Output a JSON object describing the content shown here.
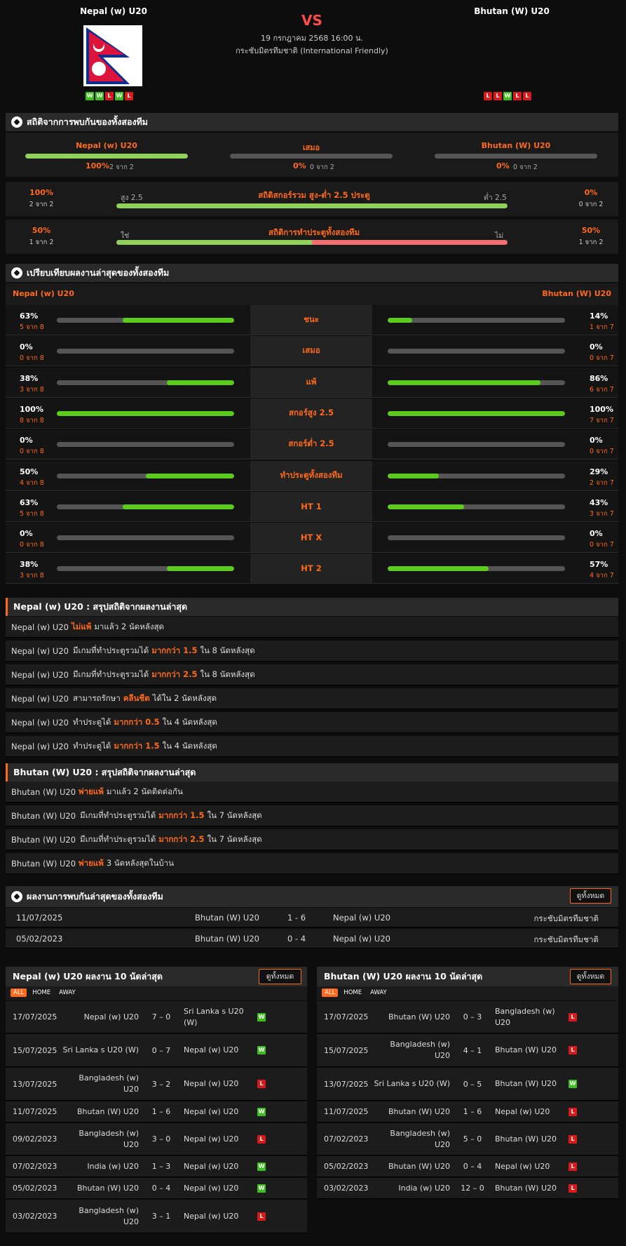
{
  "header": {
    "home_team": "Nepal (w) U20",
    "away_team": "Bhutan (W) U20",
    "vs": "VS",
    "datetime": "19 กรกฎาคม 2568 16:00 น.",
    "competition": "กระชับมิตรทีมชาติ (International Friendly)",
    "home_form": [
      "W",
      "W",
      "L",
      "W",
      "L"
    ],
    "away_form": [
      "L",
      "L",
      "W",
      "L",
      "L"
    ]
  },
  "h2h_stats": {
    "title": "สถิติจากการพบกันของทั้งสองทีม",
    "cols": [
      {
        "label": "Nepal (w) U20",
        "pct": "100%",
        "count": "2 จาก 2",
        "fill": 1.0
      },
      {
        "label": "เสมอ",
        "pct": "0%",
        "count": "0 จาก 2",
        "fill": 0
      },
      {
        "label": "Bhutan (W) U20",
        "pct": "0%",
        "count": "0 จาก 2",
        "fill": 0
      }
    ],
    "ou": {
      "left_pct": "100%",
      "left_count": "2 จาก 2",
      "left_label": "สูง 2.5",
      "title": "สถิติสกอร์รวม สูง-ต่ำ 2.5 ประตู",
      "right_label": "ต่ำ 2.5",
      "right_pct": "0%",
      "right_count": "0 จาก 2",
      "fill": 1.0
    },
    "btts": {
      "left_pct": "50%",
      "left_count": "1 จาก 2",
      "left_label": "ใช่",
      "title": "สถิติการทำประตูทั้งสองทีม",
      "right_label": "ไม่",
      "right_pct": "50%",
      "right_count": "1 จาก 2",
      "fill": 0.5
    }
  },
  "compare": {
    "title": "เปรียบเทียบผลงานล่าสุดของทั้งสองทีม",
    "home": "Nepal (w) U20",
    "away": "Bhutan (W) U20",
    "rows": [
      {
        "label": "ชนะ",
        "lp": "63%",
        "lc": "5 จาก 8",
        "lf": 0.63,
        "rp": "14%",
        "rc": "1 จาก 7",
        "rf": 0.14
      },
      {
        "label": "เสมอ",
        "lp": "0%",
        "lc": "0 จาก 8",
        "lf": 0,
        "rp": "0%",
        "rc": "0 จาก 7",
        "rf": 0
      },
      {
        "label": "แพ้",
        "lp": "38%",
        "lc": "3 จาก 8",
        "lf": 0.38,
        "rp": "86%",
        "rc": "6 จาก 7",
        "rf": 0.86
      },
      {
        "label": "สกอร์สูง 2.5",
        "lp": "100%",
        "lc": "8 จาก 8",
        "lf": 1.0,
        "rp": "100%",
        "rc": "7 จาก 7",
        "rf": 1.0
      },
      {
        "label": "สกอร์ต่ำ 2.5",
        "lp": "0%",
        "lc": "0 จาก 8",
        "lf": 0,
        "rp": "0%",
        "rc": "0 จาก 7",
        "rf": 0
      },
      {
        "label": "ทำประตูทั้งสองทีม",
        "lp": "50%",
        "lc": "4 จาก 8",
        "lf": 0.5,
        "rp": "29%",
        "rc": "2 จาก 7",
        "rf": 0.29
      },
      {
        "label": "HT 1",
        "lp": "63%",
        "lc": "5 จาก 8",
        "lf": 0.63,
        "rp": "43%",
        "rc": "3 จาก 7",
        "rf": 0.43
      },
      {
        "label": "HT X",
        "lp": "0%",
        "lc": "0 จาก 8",
        "lf": 0,
        "rp": "0%",
        "rc": "0 จาก 7",
        "rf": 0
      },
      {
        "label": "HT 2",
        "lp": "38%",
        "lc": "3 จาก 8",
        "lf": 0.38,
        "rp": "57%",
        "rc": "4 จาก 7",
        "rf": 0.57
      }
    ]
  },
  "home_summary": {
    "title": "Nepal (w) U20 : สรุปสถิติจากผลงานล่าสุด",
    "rows": [
      {
        "pre": "Nepal (w) U20",
        "mid": "",
        "hl": "ไม่แพ้",
        "post": "มาแล้ว 2 นัดหลังสุด"
      },
      {
        "pre": "Nepal (w) U20",
        "mid": "มีเกมที่ทำประตูรวมได้",
        "hl": "มากกว่า  1.5",
        "post": "ใน 8 นัดหลังสุด"
      },
      {
        "pre": "Nepal (w) U20",
        "mid": "มีเกมที่ทำประตูรวมได้",
        "hl": "มากกว่า  2.5",
        "post": "ใน 8 นัดหลังสุด"
      },
      {
        "pre": "Nepal (w) U20",
        "mid": "สามารถรักษา",
        "hl": "คลีนชีต",
        "post": "ได้ใน 2 นัดหลังสุด"
      },
      {
        "pre": "Nepal (w) U20",
        "mid": "ทำประตูได้",
        "hl": "มากกว่า  0.5",
        "post": "ใน 4 นัดหลังสุด"
      },
      {
        "pre": "Nepal (w) U20",
        "mid": "ทำประตูได้",
        "hl": "มากกว่า  1.5",
        "post": "ใน 4 นัดหลังสุด"
      }
    ]
  },
  "away_summary": {
    "title": "Bhutan (W) U20 : สรุปสถิติจากผลงานล่าสุด",
    "rows": [
      {
        "pre": "Bhutan (W) U20",
        "mid": "",
        "hl": "พ่ายแพ้",
        "post": "มาแล้ว 2 นัดติดต่อกัน"
      },
      {
        "pre": "Bhutan (W) U20",
        "mid": "มีเกมที่ทำประตูรวมได้",
        "hl": "มากกว่า  1.5",
        "post": "ใน 7 นัดหลังสุด"
      },
      {
        "pre": "Bhutan (W) U20",
        "mid": "มีเกมที่ทำประตูรวมได้",
        "hl": "มากกว่า  2.5",
        "post": "ใน 7 นัดหลังสุด"
      },
      {
        "pre": "Bhutan (W) U20",
        "mid": "",
        "hl": "พ่ายแพ้",
        "post": "3  นัดหลังสุดในบ้าน"
      }
    ]
  },
  "h2h_results": {
    "title": "ผลงานการพบกันล่าสุดของทั้งสองทีม",
    "view_all": "ดูทั้งหมด",
    "rows": [
      {
        "date": "11/07/2025",
        "home": "Bhutan (W) U20",
        "score": "1 - 6",
        "away": "Nepal (w) U20",
        "comp": "กระชับมิตรทีมชาติ"
      },
      {
        "date": "05/02/2023",
        "home": "Bhutan (W) U20",
        "score": "0 - 4",
        "away": "Nepal (w) U20",
        "comp": "กระชับมิตรทีมชาติ"
      }
    ]
  },
  "home_last10": {
    "title": "Nepal (w) U20 ผลงาน 10 นัดล่าสุด",
    "view_all": "ดูทั้งหมด",
    "tabs": [
      "ALL",
      "HOME",
      "AWAY"
    ],
    "rows": [
      {
        "date": "17/07/2025",
        "home": "Nepal (w) U20",
        "score": "7 – 0",
        "away": "Sri Lanka s U20 (W)",
        "res": "W"
      },
      {
        "date": "15/07/2025",
        "home": "Sri Lanka s U20 (W)",
        "score": "0 – 7",
        "away": "Nepal (w) U20",
        "res": "W"
      },
      {
        "date": "13/07/2025",
        "home": "Bangladesh (w) U20",
        "score": "3 – 2",
        "away": "Nepal (w) U20",
        "res": "L"
      },
      {
        "date": "11/07/2025",
        "home": "Bhutan (W) U20",
        "score": "1 – 6",
        "away": "Nepal (w) U20",
        "res": "W"
      },
      {
        "date": "09/02/2023",
        "home": "Bangladesh (w) U20",
        "score": "3 – 0",
        "away": "Nepal (w) U20",
        "res": "L"
      },
      {
        "date": "07/02/2023",
        "home": "India (w) U20",
        "score": "1 – 3",
        "away": "Nepal (w) U20",
        "res": "W"
      },
      {
        "date": "05/02/2023",
        "home": "Bhutan (W) U20",
        "score": "0 – 4",
        "away": "Nepal (w) U20",
        "res": "W"
      },
      {
        "date": "03/02/2023",
        "home": "Bangladesh (w) U20",
        "score": "3 – 1",
        "away": "Nepal (w) U20",
        "res": "L"
      }
    ]
  },
  "away_last10": {
    "title": "Bhutan (W) U20 ผลงาน 10 นัดล่าสุด",
    "view_all": "ดูทั้งหมด",
    "tabs": [
      "ALL",
      "HOME",
      "AWAY"
    ],
    "rows": [
      {
        "date": "17/07/2025",
        "home": "Bhutan (W) U20",
        "score": "0 – 3",
        "away": "Bangladesh (w) U20",
        "res": "L"
      },
      {
        "date": "15/07/2025",
        "home": "Bangladesh (w) U20",
        "score": "4 – 1",
        "away": "Bhutan (W) U20",
        "res": "L"
      },
      {
        "date": "13/07/2025",
        "home": "Sri Lanka s U20 (W)",
        "score": "0 – 5",
        "away": "Bhutan (W) U20",
        "res": "W"
      },
      {
        "date": "11/07/2025",
        "home": "Bhutan (W) U20",
        "score": "1 – 6",
        "away": "Nepal (w) U20",
        "res": "L"
      },
      {
        "date": "07/02/2023",
        "home": "Bangladesh (w) U20",
        "score": "5 – 0",
        "away": "Bhutan (W) U20",
        "res": "L"
      },
      {
        "date": "05/02/2023",
        "home": "Bhutan (W) U20",
        "score": "0 – 4",
        "away": "Nepal (w) U20",
        "res": "L"
      },
      {
        "date": "03/02/2023",
        "home": "India (w) U20",
        "score": "12 – 0",
        "away": "Bhutan (W) U20",
        "res": "L"
      }
    ]
  },
  "colors": {
    "accent": "#ff6a1a",
    "win": "#3cbf1c",
    "loss": "#d91a1a",
    "bar_fill": "#5bcc1c",
    "bar_red": "#f07070"
  }
}
